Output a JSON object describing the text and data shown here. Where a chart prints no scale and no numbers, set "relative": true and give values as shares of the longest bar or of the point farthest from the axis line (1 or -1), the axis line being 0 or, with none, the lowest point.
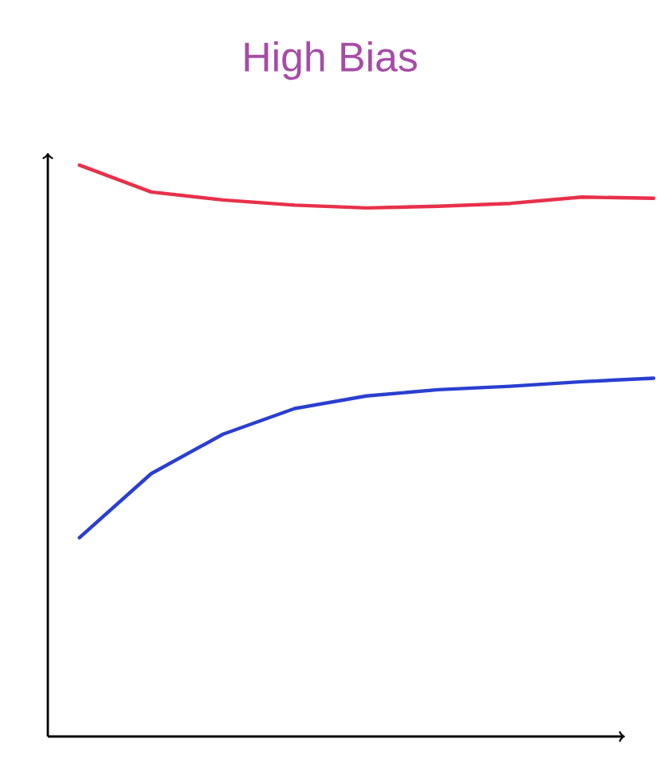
{
  "chart_data": {
    "type": "line",
    "title": "High Bias",
    "relative": true,
    "categories": [
      null,
      null,
      null,
      null,
      null,
      null,
      null,
      null,
      null
    ],
    "series": [
      {
        "color": "#e8304a",
        "values": [
          1.0,
          0.953,
          0.939,
          0.93,
          0.925,
          0.928,
          0.933,
          0.944,
          0.942
        ]
      },
      {
        "color": "#2a3fd0",
        "values": [
          0.348,
          0.46,
          0.529,
          0.574,
          0.596,
          0.607,
          0.613,
          0.621,
          0.627
        ]
      }
    ],
    "marker": "none",
    "line_style": "solid"
  }
}
